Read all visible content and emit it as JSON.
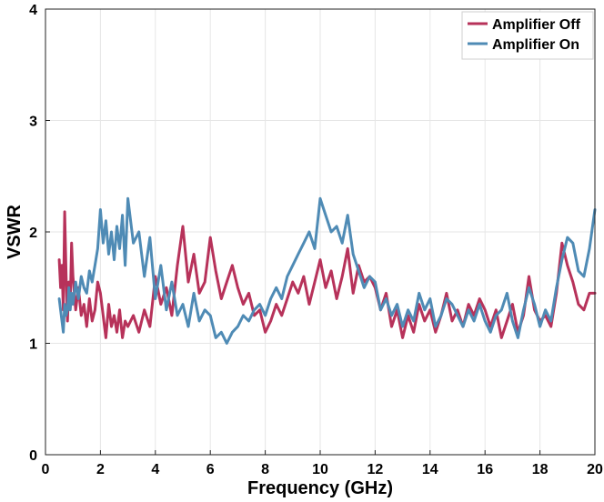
{
  "chart_data": {
    "type": "line",
    "title": "",
    "xlabel": "Frequency (GHz)",
    "ylabel": "VSWR",
    "xlim": [
      0,
      20
    ],
    "ylim": [
      0,
      4
    ],
    "xticks": [
      0,
      2,
      4,
      6,
      8,
      10,
      12,
      14,
      16,
      18,
      20
    ],
    "yticks": [
      0,
      1,
      2,
      3,
      4
    ],
    "grid": true,
    "legend_position": "top-right",
    "series": [
      {
        "name": "Amplifier Off",
        "color": "#b7325a",
        "x": [
          0.5,
          0.55,
          0.6,
          0.65,
          0.7,
          0.75,
          0.8,
          0.85,
          0.9,
          0.95,
          1.0,
          1.1,
          1.2,
          1.3,
          1.4,
          1.5,
          1.6,
          1.7,
          1.8,
          1.9,
          2.0,
          2.1,
          2.2,
          2.3,
          2.4,
          2.5,
          2.6,
          2.7,
          2.8,
          2.9,
          3.0,
          3.2,
          3.4,
          3.6,
          3.8,
          4.0,
          4.2,
          4.4,
          4.6,
          4.8,
          5.0,
          5.2,
          5.4,
          5.6,
          5.8,
          6.0,
          6.2,
          6.4,
          6.6,
          6.8,
          7.0,
          7.2,
          7.4,
          7.6,
          7.8,
          8.0,
          8.2,
          8.4,
          8.6,
          8.8,
          9.0,
          9.2,
          9.4,
          9.6,
          9.8,
          10.0,
          10.2,
          10.4,
          10.6,
          10.8,
          11.0,
          11.2,
          11.4,
          11.6,
          11.8,
          12.0,
          12.2,
          12.4,
          12.6,
          12.8,
          13.0,
          13.2,
          13.4,
          13.6,
          13.8,
          14.0,
          14.2,
          14.4,
          14.6,
          14.8,
          15.0,
          15.2,
          15.4,
          15.6,
          15.8,
          16.0,
          16.2,
          16.4,
          16.6,
          16.8,
          17.0,
          17.2,
          17.4,
          17.6,
          17.8,
          18.0,
          18.2,
          18.4,
          18.6,
          18.8,
          19.0,
          19.2,
          19.4,
          19.6,
          19.8,
          20.0
        ],
        "values": [
          1.75,
          1.5,
          1.7,
          1.3,
          2.18,
          1.6,
          1.2,
          1.55,
          1.35,
          1.9,
          1.6,
          1.3,
          1.5,
          1.25,
          1.35,
          1.15,
          1.4,
          1.2,
          1.3,
          1.55,
          1.45,
          1.25,
          1.05,
          1.35,
          1.15,
          1.25,
          1.1,
          1.3,
          1.05,
          1.2,
          1.15,
          1.25,
          1.1,
          1.3,
          1.15,
          1.6,
          1.35,
          1.5,
          1.25,
          1.7,
          2.05,
          1.55,
          1.8,
          1.45,
          1.55,
          1.95,
          1.65,
          1.4,
          1.55,
          1.7,
          1.5,
          1.35,
          1.45,
          1.25,
          1.3,
          1.1,
          1.2,
          1.35,
          1.25,
          1.4,
          1.55,
          1.45,
          1.6,
          1.35,
          1.55,
          1.75,
          1.5,
          1.65,
          1.4,
          1.6,
          1.85,
          1.45,
          1.7,
          1.55,
          1.6,
          1.5,
          1.3,
          1.45,
          1.15,
          1.3,
          1.05,
          1.25,
          1.1,
          1.35,
          1.2,
          1.3,
          1.1,
          1.25,
          1.45,
          1.2,
          1.3,
          1.15,
          1.35,
          1.25,
          1.4,
          1.3,
          1.15,
          1.3,
          1.05,
          1.2,
          1.35,
          1.1,
          1.25,
          1.6,
          1.3,
          1.2,
          1.25,
          1.15,
          1.45,
          1.9,
          1.7,
          1.55,
          1.35,
          1.3,
          1.45,
          1.45
        ]
      },
      {
        "name": "Amplifier On",
        "color": "#4f8bb5",
        "x": [
          0.5,
          0.55,
          0.6,
          0.65,
          0.7,
          0.75,
          0.8,
          0.85,
          0.9,
          0.95,
          1.0,
          1.1,
          1.2,
          1.3,
          1.4,
          1.5,
          1.6,
          1.7,
          1.8,
          1.9,
          2.0,
          2.1,
          2.2,
          2.3,
          2.4,
          2.5,
          2.6,
          2.7,
          2.8,
          2.9,
          3.0,
          3.2,
          3.4,
          3.6,
          3.8,
          4.0,
          4.2,
          4.4,
          4.6,
          4.8,
          5.0,
          5.2,
          5.4,
          5.6,
          5.8,
          6.0,
          6.2,
          6.4,
          6.6,
          6.8,
          7.0,
          7.2,
          7.4,
          7.6,
          7.8,
          8.0,
          8.2,
          8.4,
          8.6,
          8.8,
          9.0,
          9.2,
          9.4,
          9.6,
          9.8,
          10.0,
          10.2,
          10.4,
          10.6,
          10.8,
          11.0,
          11.2,
          11.4,
          11.6,
          11.8,
          12.0,
          12.2,
          12.4,
          12.6,
          12.8,
          13.0,
          13.2,
          13.4,
          13.6,
          13.8,
          14.0,
          14.2,
          14.4,
          14.6,
          14.8,
          15.0,
          15.2,
          15.4,
          15.6,
          15.8,
          16.0,
          16.2,
          16.4,
          16.6,
          16.8,
          17.0,
          17.2,
          17.4,
          17.6,
          17.8,
          18.0,
          18.2,
          18.4,
          18.6,
          18.8,
          19.0,
          19.2,
          19.4,
          19.6,
          19.8,
          20.0
        ],
        "values": [
          1.4,
          1.3,
          1.2,
          1.1,
          1.35,
          1.25,
          1.3,
          1.5,
          1.3,
          1.45,
          1.35,
          1.55,
          1.4,
          1.6,
          1.5,
          1.45,
          1.65,
          1.55,
          1.7,
          1.85,
          2.2,
          1.9,
          2.1,
          1.8,
          2.0,
          1.75,
          2.05,
          1.85,
          2.15,
          1.7,
          2.3,
          1.9,
          2.0,
          1.6,
          1.95,
          1.4,
          1.7,
          1.3,
          1.55,
          1.25,
          1.35,
          1.15,
          1.45,
          1.2,
          1.3,
          1.25,
          1.05,
          1.1,
          1.0,
          1.1,
          1.15,
          1.25,
          1.2,
          1.3,
          1.35,
          1.25,
          1.4,
          1.5,
          1.4,
          1.6,
          1.7,
          1.8,
          1.9,
          2.0,
          1.85,
          2.3,
          2.15,
          2.0,
          2.05,
          1.9,
          2.15,
          1.8,
          1.65,
          1.5,
          1.6,
          1.55,
          1.3,
          1.4,
          1.25,
          1.35,
          1.15,
          1.3,
          1.2,
          1.45,
          1.3,
          1.4,
          1.15,
          1.25,
          1.4,
          1.35,
          1.25,
          1.15,
          1.3,
          1.2,
          1.35,
          1.2,
          1.1,
          1.25,
          1.3,
          1.45,
          1.2,
          1.05,
          1.3,
          1.5,
          1.35,
          1.15,
          1.3,
          1.2,
          1.5,
          1.75,
          1.95,
          1.9,
          1.65,
          1.6,
          1.85,
          2.2
        ]
      }
    ]
  }
}
